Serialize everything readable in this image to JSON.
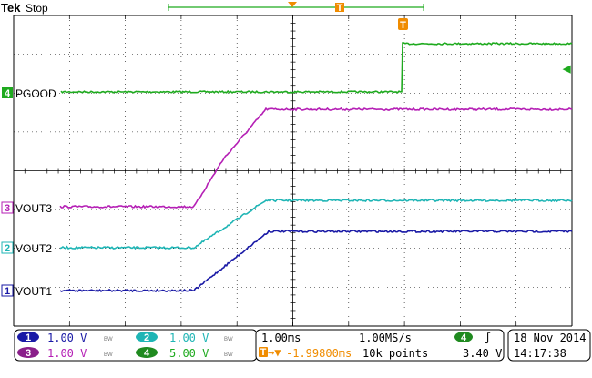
{
  "header": {
    "brand": "Tek",
    "status": "Stop"
  },
  "trigger": {
    "marker_glyph": "T",
    "time_marker_glyph": "T",
    "level_arrow_glyph": "◀"
  },
  "channels": [
    {
      "id": "1",
      "color": "#1a1aa6",
      "scale": "1.00 V",
      "bw_badge": "BW",
      "label": "VOUT1"
    },
    {
      "id": "2",
      "color": "#1fb5b5",
      "scale": "1.00 V",
      "bw_badge": "BW",
      "label": "VOUT2"
    },
    {
      "id": "3",
      "color": "#b51fb5",
      "scale": "1.00 V",
      "bw_badge": "BW",
      "label": "VOUT3"
    },
    {
      "id": "4",
      "color": "#1faa1f",
      "scale": "5.00 V",
      "bw_badge": "BW",
      "label": "PGOOD"
    }
  ],
  "timebase": {
    "time_per_div": "1.00ms",
    "sample_rate": "1.00MS/s",
    "trigger_delay": "-1.99800ms",
    "record_length": "10k points",
    "trigger_source": "4",
    "trigger_slope_glyph": "∫",
    "trigger_level": "3.40 V"
  },
  "datetime": {
    "date": "18 Nov 2014",
    "time": "14:17:38"
  },
  "colors": {
    "trigger": "#f08c00",
    "grid": "#000000"
  }
}
